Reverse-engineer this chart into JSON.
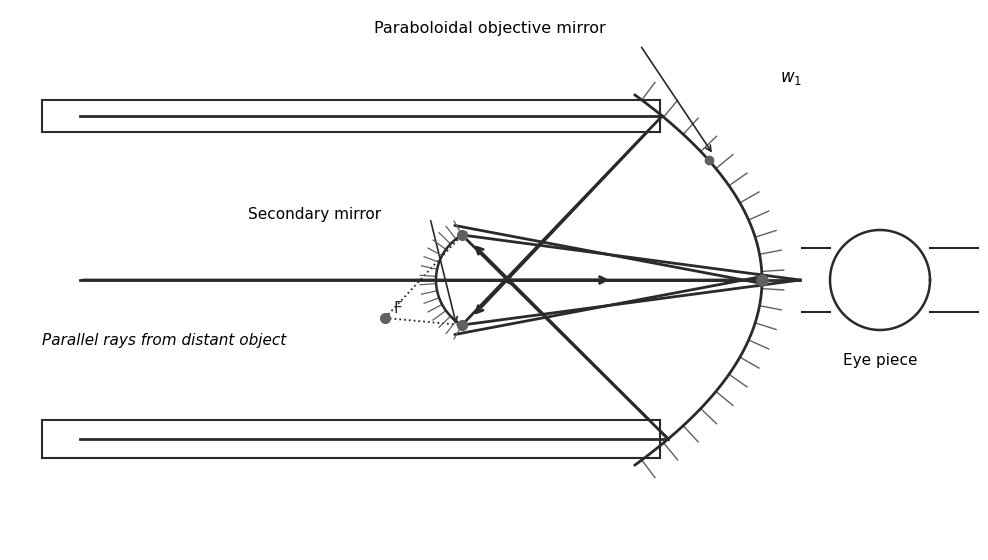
{
  "bg_color": "#ffffff",
  "line_color": "#2a2a2a",
  "gray_color": "#606060",
  "dot_color": "#606060",
  "title": "Paraboloidal objective mirror",
  "w1_label": "w₁",
  "secondary_label": "Secondary mirror",
  "focal_label": "F",
  "parallel_label": "Parallel rays from distant object",
  "eyepiece_label": "Eye piece",
  "figsize": [
    9.88,
    5.6
  ],
  "dpi": 100
}
